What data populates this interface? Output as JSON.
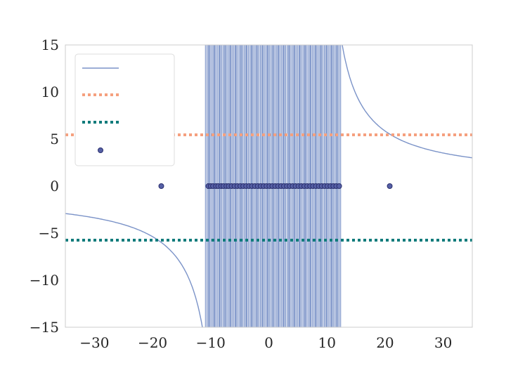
{
  "chart_data": {
    "type": "line",
    "title": "",
    "xlabel": "",
    "ylabel": "",
    "xlim": [
      -35,
      35
    ],
    "ylim": [
      -15,
      15
    ],
    "xticks": [
      -30,
      -20,
      -10,
      0,
      10,
      20,
      30
    ],
    "yticks": [
      -15,
      -10,
      -5,
      0,
      5,
      10,
      15
    ],
    "xtick_labels": [
      "−30",
      "−20",
      "−10",
      "0",
      "10",
      "20",
      "30"
    ],
    "ytick_labels": [
      "−15",
      "−10",
      "−5",
      "0",
      "5",
      "10",
      "15"
    ],
    "grid": false,
    "legend": {
      "placement": "upper-left",
      "labels": [
        "",
        "",
        "",
        ""
      ]
    },
    "series": [
      {
        "kind": "line",
        "color": "#7b93c8",
        "dense_oscillation_x_range": [
          -10.9,
          12.4
        ],
        "right_branch_start": [
          12.4,
          15
        ],
        "right_branch_end": [
          35,
          3.0
        ],
        "left_branch_start": [
          -35,
          -2.9
        ],
        "left_branch_end": [
          -11.2,
          -15
        ]
      },
      {
        "kind": "hline",
        "color": "#f5a07e",
        "style": "dotted",
        "y": 5.45
      },
      {
        "kind": "hline",
        "color": "#0f7b7b",
        "style": "dotted",
        "y": -5.75
      },
      {
        "kind": "scatter",
        "color": "#5660a6",
        "edge_color": "#2a2f6e",
        "y": 0,
        "x": [
          -18.5,
          -10.4,
          -10.0,
          -9.6,
          -9.1,
          -8.7,
          -8.2,
          -7.8,
          -7.3,
          -6.9,
          -6.4,
          -5.9,
          -5.4,
          -4.9,
          -4.4,
          -3.9,
          -3.4,
          -2.9,
          -2.4,
          -1.9,
          -1.4,
          -0.9,
          -0.4,
          0.1,
          0.6,
          1.1,
          1.6,
          2.1,
          2.6,
          3.1,
          3.6,
          4.1,
          4.6,
          5.1,
          5.6,
          6.1,
          6.6,
          7.1,
          7.6,
          8.1,
          8.6,
          9.1,
          9.6,
          10.1,
          10.6,
          11.1,
          11.6,
          12.1,
          20.8
        ]
      }
    ]
  }
}
